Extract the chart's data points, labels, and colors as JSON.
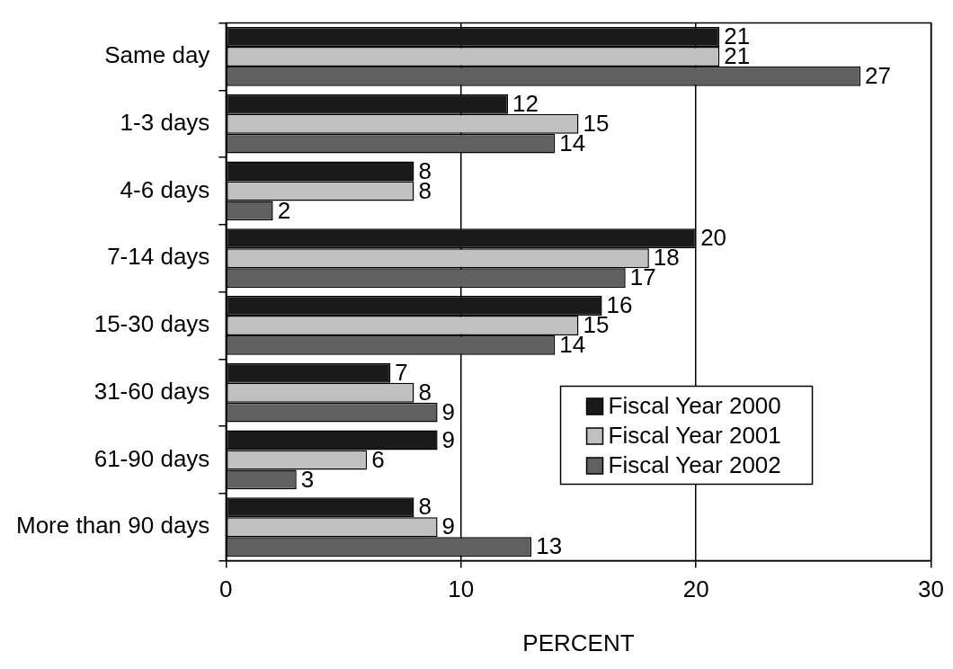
{
  "chart_data": {
    "type": "bar",
    "orientation": "horizontal",
    "xlabel": "PERCENT",
    "categories": [
      "Same day",
      "1-3 days",
      "4-6 days",
      "7-14 days",
      "15-30 days",
      "31-60 days",
      "61-90 days",
      "More than 90 days"
    ],
    "series": [
      {
        "name": "Fiscal Year 2000",
        "color": "#1a1a1a",
        "values": [
          21,
          12,
          8,
          20,
          16,
          7,
          9,
          8
        ]
      },
      {
        "name": "Fiscal Year 2001",
        "color": "#c0c0c0",
        "values": [
          21,
          15,
          8,
          18,
          15,
          8,
          6,
          9
        ]
      },
      {
        "name": "Fiscal Year 2002",
        "color": "#606060",
        "values": [
          27,
          14,
          2,
          17,
          14,
          9,
          3,
          13
        ]
      }
    ],
    "xlim": [
      0,
      30
    ],
    "xticks": [
      0,
      10,
      20,
      30
    ],
    "grid": "x",
    "legend": "bottom right",
    "data_labels": true
  }
}
